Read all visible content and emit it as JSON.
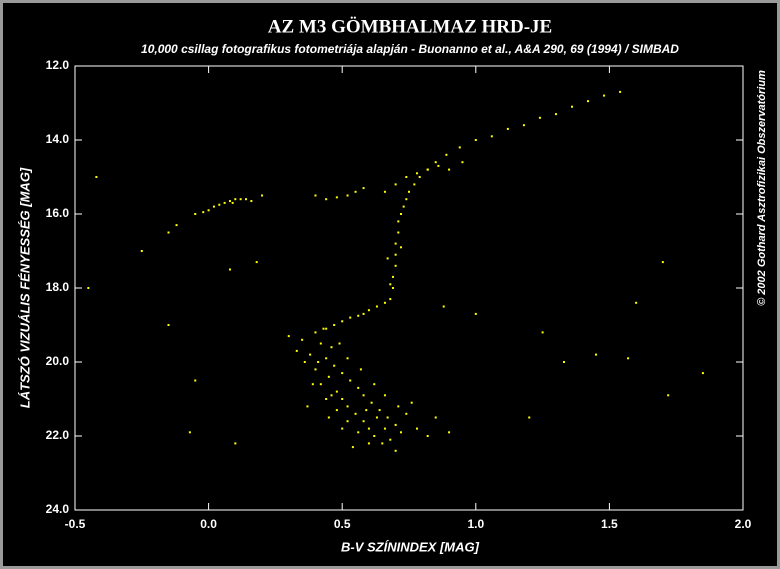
{
  "chart_data": {
    "type": "scatter",
    "title": "AZ M3 GÖMBHALMAZ HRD-JE",
    "subtitle": "10,000 csillag fotografikus fotometriája alapján - Buonanno et al., A&A 290, 69 (1994) / SIMBAD",
    "xlabel": "B-V SZÍNINDEX [MAG]",
    "ylabel": "LÁTSZÓ VIZUÁLIS FÉNYESSÉG [MAG]",
    "annotation": "© 2002 Gothard Asztrofizikai Obszervatórium",
    "color": "#ffff00",
    "xlim": [
      -0.5,
      2.0
    ],
    "ylim": [
      12.0,
      24.0
    ],
    "y_inverted": true,
    "xticks": [
      {
        "value": -0.5,
        "label": "-0.5"
      },
      {
        "value": 0,
        "label": "0.0"
      },
      {
        "value": 0.5,
        "label": "0.5"
      },
      {
        "value": 1,
        "label": "1.0"
      },
      {
        "value": 1.5,
        "label": "1.5"
      },
      {
        "value": 2,
        "label": "2.0"
      }
    ],
    "yticks": [
      {
        "value": 12,
        "label": "12.0"
      },
      {
        "value": 14,
        "label": "14.0"
      },
      {
        "value": 16,
        "label": "16.0"
      },
      {
        "value": 18,
        "label": "18.0"
      },
      {
        "value": 20,
        "label": "20.0"
      },
      {
        "value": 22,
        "label": "22.0"
      },
      {
        "value": 24,
        "label": "24.0"
      }
    ],
    "x": [
      0.4,
      0.42,
      0.38,
      0.36,
      0.4,
      0.45,
      0.42,
      0.48,
      0.5,
      0.52,
      0.55,
      0.58,
      0.6,
      0.62,
      0.65,
      0.46,
      0.44,
      0.47,
      0.5,
      0.53,
      0.56,
      0.58,
      0.61,
      0.64,
      0.67,
      0.7,
      0.72,
      0.35,
      0.33,
      0.39,
      0.44,
      0.48,
      0.52,
      0.56,
      0.6,
      0.68,
      0.74,
      0.78,
      0.82,
      0.76,
      0.66,
      0.62,
      0.57,
      0.52,
      0.49,
      0.43,
      0.3,
      0.37,
      0.85,
      0.9,
      0.54,
      0.7,
      0.41,
      0.46,
      0.63,
      0.59,
      0.71,
      0.66,
      0.5,
      0.45,
      0.47,
      0.5,
      0.53,
      0.56,
      0.6,
      0.63,
      0.66,
      0.44,
      0.58,
      0.68,
      0.69,
      0.69,
      0.7,
      0.7,
      0.7,
      0.71,
      0.71,
      0.72,
      0.73,
      0.74,
      0.75,
      0.77,
      0.79,
      0.82,
      0.85,
      0.89,
      0.94,
      1.0,
      1.06,
      1.12,
      1.18,
      1.24,
      1.3,
      1.36,
      1.42,
      1.48,
      1.54,
      0.68,
      0.72,
      0.67,
      0.7,
      0.74,
      0.78,
      0.82,
      0.86,
      0.9,
      0.66,
      0.95,
      -0.05,
      -0.02,
      0.0,
      0.02,
      0.04,
      0.06,
      0.08,
      0.1,
      0.12,
      0.14,
      0.16,
      0.2,
      -0.12,
      -0.15,
      0.09,
      0.4,
      0.44,
      0.48,
      0.52,
      0.55,
      0.58,
      -0.42,
      -0.45,
      -0.25,
      -0.15,
      -0.05,
      0.08,
      0.18,
      0.1,
      -0.07,
      1.0,
      1.25,
      1.33,
      1.45,
      1.57,
      1.6,
      1.7,
      1.85,
      1.72,
      0.88,
      1.2
    ],
    "values": [
      19.2,
      19.5,
      19.8,
      20.0,
      20.2,
      20.4,
      20.6,
      20.8,
      21.0,
      21.2,
      21.4,
      21.6,
      21.8,
      22.0,
      22.2,
      19.6,
      19.9,
      20.1,
      20.3,
      20.5,
      20.7,
      20.9,
      21.1,
      21.3,
      21.5,
      21.7,
      21.9,
      19.4,
      19.7,
      20.6,
      21.0,
      21.3,
      21.6,
      21.9,
      22.2,
      22.1,
      21.4,
      21.8,
      22.0,
      21.1,
      20.9,
      20.6,
      20.2,
      19.9,
      19.5,
      19.1,
      19.3,
      21.2,
      21.5,
      21.9,
      22.3,
      22.4,
      20.0,
      20.9,
      21.5,
      21.3,
      21.2,
      21.8,
      21.8,
      21.5,
      19.0,
      18.9,
      18.8,
      18.75,
      18.6,
      18.5,
      18.4,
      19.1,
      18.7,
      18.3,
      18.0,
      17.7,
      17.4,
      17.1,
      16.8,
      16.5,
      16.2,
      16.0,
      15.8,
      15.6,
      15.4,
      15.2,
      15.0,
      14.8,
      14.6,
      14.4,
      14.2,
      14.0,
      13.9,
      13.7,
      13.6,
      13.4,
      13.3,
      13.1,
      12.95,
      12.8,
      12.7,
      17.9,
      16.9,
      17.2,
      15.2,
      15.0,
      14.9,
      14.8,
      14.7,
      14.8,
      15.4,
      14.6,
      16.0,
      15.95,
      15.9,
      15.8,
      15.75,
      15.7,
      15.65,
      15.6,
      15.6,
      15.6,
      15.65,
      15.5,
      16.3,
      16.5,
      15.7,
      15.5,
      15.6,
      15.55,
      15.5,
      15.4,
      15.3,
      15.0,
      18.0,
      17.0,
      19.0,
      20.5,
      17.5,
      17.3,
      22.2,
      21.9,
      18.7,
      19.2,
      20.0,
      19.8,
      19.9,
      18.4,
      17.3,
      20.3,
      20.9,
      18.5,
      21.5
    ]
  }
}
